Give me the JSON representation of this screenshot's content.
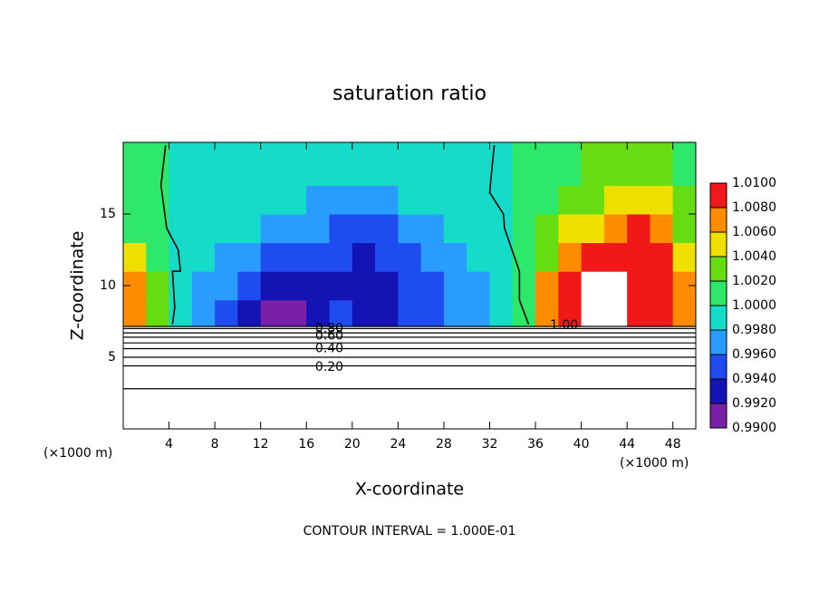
{
  "chart_data": {
    "type": "contour",
    "title": "saturation ratio",
    "x_label": "X-coordinate",
    "y_label": "Z-coordinate",
    "x_unit_left": "(×1000 m)",
    "x_unit_right": "(×1000 m)",
    "footnote": "CONTOUR INTERVAL = 1.000E-01",
    "xlim": [
      0,
      50
    ],
    "ylim": [
      0,
      20
    ],
    "xticks": [
      4,
      8,
      12,
      16,
      20,
      24,
      28,
      32,
      36,
      40,
      44,
      48
    ],
    "yticks": [
      5,
      10,
      15
    ],
    "colorbar": {
      "lim": [
        0.99,
        1.01
      ],
      "ticks": [
        {
          "value": 0.99,
          "label": "0.9900"
        },
        {
          "value": 0.992,
          "label": "0.9920"
        },
        {
          "value": 0.994,
          "label": "0.9940"
        },
        {
          "value": 0.996,
          "label": "0.9960"
        },
        {
          "value": 0.998,
          "label": "0.9980"
        },
        {
          "value": 1.0,
          "label": "1.0000"
        },
        {
          "value": 1.002,
          "label": "1.0020"
        },
        {
          "value": 1.004,
          "label": "1.0040"
        },
        {
          "value": 1.006,
          "label": "1.0060"
        },
        {
          "value": 1.008,
          "label": "1.0080"
        },
        {
          "value": 1.01,
          "label": "1.0100"
        }
      ],
      "colors": [
        "#7a1fa8",
        "#1414b4",
        "#1f4cf0",
        "#2a9cff",
        "#14dcc8",
        "#2ee86a",
        "#66dd10",
        "#f0e000",
        "#ff8c00",
        "#f01818",
        "#f08c8c"
      ],
      "over_color": "#ffffff"
    },
    "field": {
      "x_edges": [
        0,
        2,
        4,
        6,
        8,
        10,
        12,
        14,
        16,
        18,
        20,
        22,
        24,
        26,
        28,
        30,
        32,
        34,
        36,
        38,
        40,
        42,
        44,
        46,
        48,
        50
      ],
      "z_edges": [
        7.2,
        9,
        11,
        13,
        15,
        17,
        20
      ],
      "values": [
        [
          1.006,
          1.002,
          0.999,
          0.996,
          0.995,
          0.993,
          0.991,
          0.9905,
          0.993,
          0.994,
          0.992,
          0.993,
          0.995,
          0.995,
          0.996,
          0.997,
          0.999,
          1.0,
          1.007,
          1.009,
          1.012,
          1.012,
          1.008,
          1.009,
          1.007
        ],
        [
          1.007,
          1.002,
          0.999,
          0.997,
          0.996,
          0.994,
          0.992,
          0.992,
          0.993,
          0.993,
          0.992,
          0.993,
          0.994,
          0.995,
          0.996,
          0.997,
          0.999,
          1.001,
          1.006,
          1.008,
          1.012,
          1.011,
          1.008,
          1.01,
          1.007
        ],
        [
          1.004,
          1.001,
          0.999,
          0.998,
          0.997,
          0.996,
          0.995,
          0.995,
          0.995,
          0.994,
          0.993,
          0.994,
          0.995,
          0.996,
          0.997,
          0.998,
          0.999,
          1.001,
          1.003,
          1.006,
          1.009,
          1.008,
          1.008,
          1.009,
          1.005
        ],
        [
          1.001,
          1.0,
          0.999,
          0.999,
          0.998,
          0.998,
          0.997,
          0.997,
          0.996,
          0.995,
          0.995,
          0.995,
          0.996,
          0.997,
          0.998,
          0.999,
          0.999,
          1.001,
          1.002,
          1.004,
          1.005,
          1.006,
          1.008,
          1.007,
          1.003
        ],
        [
          1.0,
          1.0,
          0.999,
          0.999,
          0.999,
          0.999,
          0.998,
          0.998,
          0.997,
          0.997,
          0.997,
          0.997,
          0.998,
          0.998,
          0.999,
          0.999,
          0.999,
          1.001,
          1.001,
          1.002,
          1.003,
          1.004,
          1.005,
          1.004,
          1.002
        ],
        [
          1.0,
          1.0,
          0.999,
          0.999,
          0.999,
          0.999,
          0.999,
          0.999,
          0.999,
          0.998,
          0.998,
          0.998,
          0.999,
          0.999,
          0.999,
          0.999,
          0.999,
          1.0,
          1.001,
          1.001,
          1.002,
          1.002,
          1.002,
          1.002,
          1.001
        ]
      ]
    },
    "contours": [
      {
        "level": 0.1,
        "z": 2.8
      },
      {
        "level": 0.2,
        "z": 4.4
      },
      {
        "level": 0.3,
        "z": 5.0
      },
      {
        "level": 0.4,
        "z": 5.6
      },
      {
        "level": 0.5,
        "z": 6.0
      },
      {
        "level": 0.6,
        "z": 6.4
      },
      {
        "level": 0.7,
        "z": 6.7
      },
      {
        "level": 0.8,
        "z": 7.0
      },
      {
        "level": 0.9,
        "z": 7.15
      }
    ],
    "contour_lines": [
      {
        "x": [
          3.7,
          3.3,
          3.8,
          4.8,
          5.0,
          4.3,
          4.5,
          4.3
        ],
        "z": [
          19.8,
          17,
          14,
          12.5,
          11,
          11,
          8.5,
          7.3
        ]
      },
      {
        "x": [
          32.4,
          32.0,
          33.2,
          33.3,
          34.6,
          34.6,
          35.4
        ],
        "z": [
          19.8,
          16.5,
          15,
          14,
          11,
          9,
          7.3
        ]
      }
    ],
    "contour_labels": [
      {
        "text": "0.80",
        "x": 18,
        "z": 7.0
      },
      {
        "text": "0.60",
        "x": 18,
        "z": 6.5
      },
      {
        "text": "0.40",
        "x": 18,
        "z": 5.6
      },
      {
        "text": "0.20",
        "x": 18,
        "z": 4.3
      },
      {
        "text": "1.00",
        "x": 38.5,
        "z": 7.2
      }
    ]
  }
}
